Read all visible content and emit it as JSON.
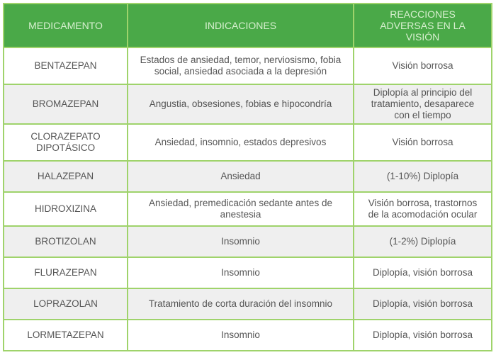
{
  "headers": [
    "MEDICAMENTO",
    "INDICACIONES",
    "REACCIONES ADVERSAS EN LA VISIÓN"
  ],
  "rows": [
    {
      "med": "BENTAZEPAN",
      "ind": "Estados de ansiedad, temor, nerviosismo, fobia social, ansiedad asociada a la depresión",
      "rea": "Visión borrosa"
    },
    {
      "med": "BROMAZEPAN",
      "ind": "Angustia, obsesiones, fobias e hipocondría",
      "rea": "Diplopía al principio del tratamiento, desaparece con el tiempo"
    },
    {
      "med": "CLORAZEPATO DIPOTÁSICO",
      "ind": "Ansiedad, insomnio, estados depresivos",
      "rea": "Visión borrosa"
    },
    {
      "med": "HALAZEPAN",
      "ind": "Ansiedad",
      "rea": "(1-10%) Diplopía"
    },
    {
      "med": "HIDROXIZINA",
      "ind": "Ansiedad, premedicación sedante antes de anestesia",
      "rea": "Visión borrosa, trastornos de la acomodación ocular"
    },
    {
      "med": "BROTIZOLAN",
      "ind": "Insomnio",
      "rea": "(1-2%) Diplopía"
    },
    {
      "med": "FLURAZEPAN",
      "ind": "Insomnio",
      "rea": "Diplopía, visión borrosa"
    },
    {
      "med": "LOPRAZOLAN",
      "ind": "Tratamiento de corta duración del insomnio",
      "rea": "Diplopía, visión borrosa"
    },
    {
      "med": "LORMETAZEPAN",
      "ind": "Insomnio",
      "rea": "Diplopía, visión borrosa"
    }
  ],
  "colors": {
    "header": "#4aa948",
    "border": "#9fd36b",
    "alt_row": "#efefef"
  }
}
